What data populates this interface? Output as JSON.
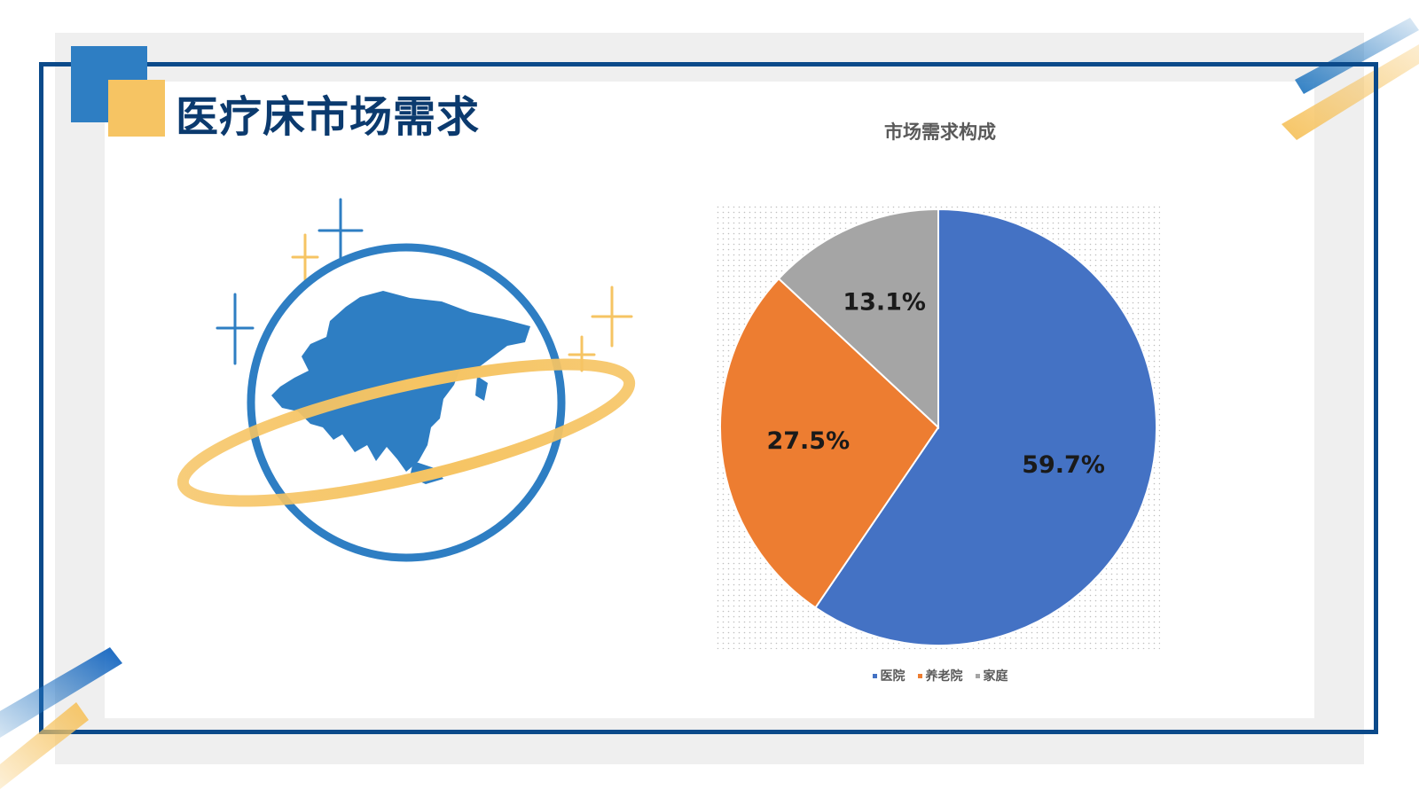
{
  "slide": {
    "title": "医疗床市场需求"
  },
  "chart_data": {
    "type": "pie",
    "title": "市场需求构成",
    "categories": [
      "医院",
      "养老院",
      "家庭"
    ],
    "values": [
      59.7,
      27.5,
      13.1
    ],
    "labels": [
      "59.7%",
      "27.5%",
      "13.1%"
    ],
    "colors": [
      "#4472c4",
      "#ed7d31",
      "#a5a5a5"
    ],
    "legend_position": "bottom",
    "start_angle_deg": 0,
    "direction": "clockwise"
  },
  "illustration": {
    "icon": "globe-asia-icon"
  },
  "colors": {
    "frame": "#0b4a8a",
    "accent_blue": "#2e7ec3",
    "accent_yellow": "#f6c463",
    "title": "#0b3a6e"
  }
}
